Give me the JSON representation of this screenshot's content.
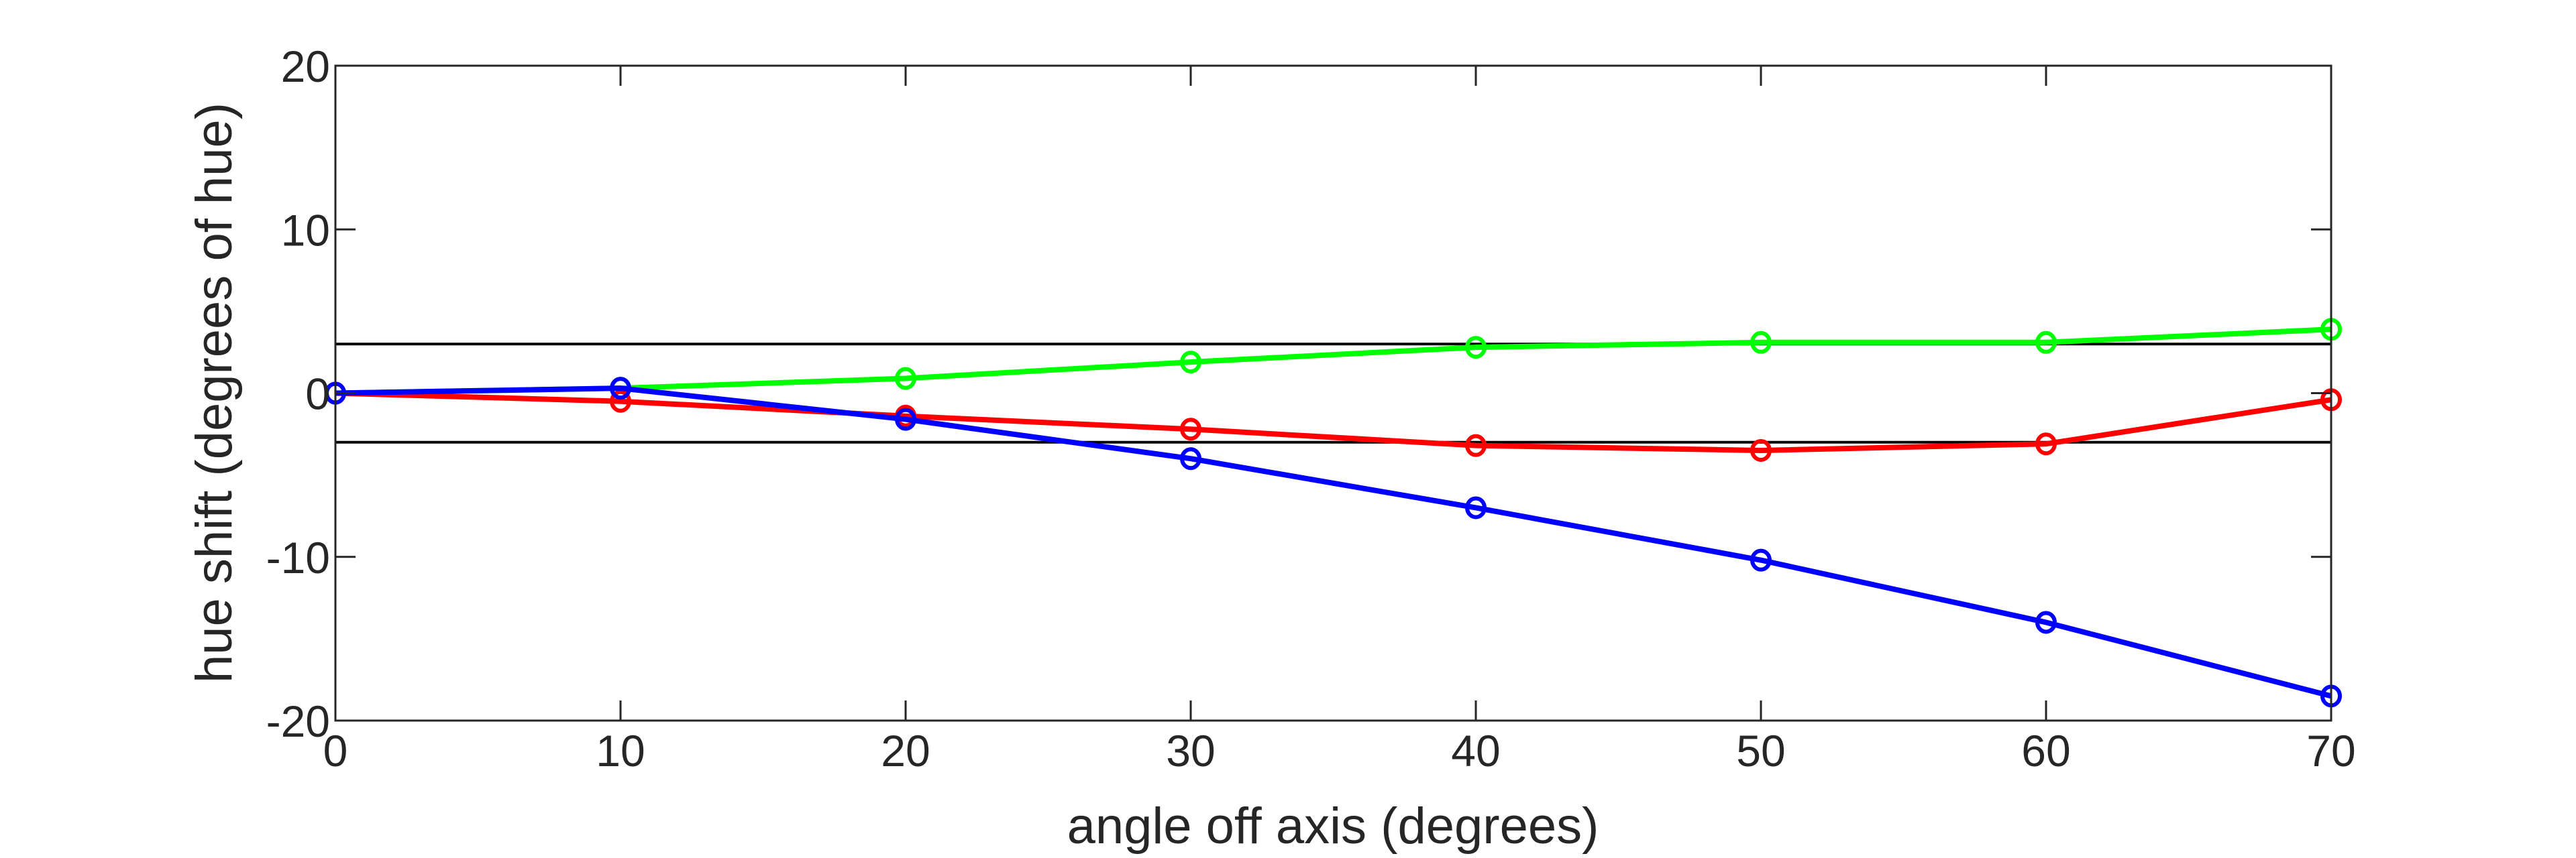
{
  "chart_data": {
    "type": "line",
    "title": "",
    "xlabel": "angle off axis (degrees)",
    "ylabel": "hue shift (degrees of hue)",
    "xlim": [
      0,
      70
    ],
    "ylim": [
      -20,
      20
    ],
    "xticks": [
      0,
      10,
      20,
      30,
      40,
      50,
      60,
      70
    ],
    "yticks": [
      -20,
      -10,
      0,
      10,
      20
    ],
    "grid": false,
    "x": [
      0,
      10,
      20,
      30,
      40,
      50,
      60,
      70
    ],
    "reference_lines": [
      3,
      -3
    ],
    "series": [
      {
        "name": "green",
        "color": "#00ff00",
        "values": [
          0,
          0.3,
          0.9,
          1.9,
          2.8,
          3.1,
          3.1,
          3.9
        ]
      },
      {
        "name": "red",
        "color": "#ff0000",
        "values": [
          0,
          -0.5,
          -1.4,
          -2.2,
          -3.2,
          -3.5,
          -3.1,
          -0.4
        ]
      },
      {
        "name": "blue",
        "color": "#0000ff",
        "values": [
          0,
          0.3,
          -1.6,
          -4.0,
          -7.0,
          -10.2,
          -14.0,
          -18.5
        ]
      }
    ]
  }
}
